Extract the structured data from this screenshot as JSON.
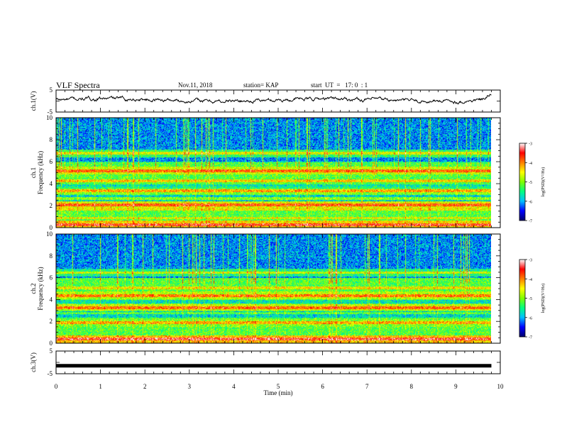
{
  "header": {
    "title": "VLF Spectra",
    "date": "Nov.11, 2018",
    "station": "station= KAP",
    "start": "start  UT  =   17: 0  : 1"
  },
  "panels": {
    "ch1_wave": {
      "ylabel": "ch.1(V)",
      "ticks": [
        "5",
        "-5"
      ]
    },
    "ch1_spec": {
      "ylabel_line1": "ch.1",
      "ylabel_line2": "Frequency (kHz)",
      "yticks": [
        "10",
        "8",
        "6",
        "4",
        "2",
        "0"
      ]
    },
    "ch2_spec": {
      "ylabel_line1": "ch.2",
      "ylabel_line2": "Frequency (kHz)",
      "yticks": [
        "10",
        "8",
        "6",
        "4",
        "2",
        "0"
      ]
    },
    "ch3_wave": {
      "ylabel": "ch.3(V)",
      "ticks": [
        "5",
        "-5"
      ]
    }
  },
  "colorbars": [
    {
      "ticks": [
        "-3",
        "-4",
        "-5",
        "-6",
        "-7"
      ],
      "label": "log(PSD)(V²/Hz)"
    },
    {
      "ticks": [
        "-3",
        "-4",
        "-5",
        "-6",
        "-7"
      ],
      "label": "log(PSD)(V²/Hz)"
    }
  ],
  "xaxis": {
    "label": "Time  (min)",
    "ticks": [
      "0",
      "1",
      "2",
      "3",
      "4",
      "5",
      "6",
      "7",
      "8",
      "9",
      "10"
    ]
  },
  "chart_data": {
    "type": "heatmap",
    "x_range_min": [
      0,
      10
    ],
    "data_end_min": 9.8,
    "ch1_voltage_range_V": [
      -5,
      5
    ],
    "ch3_voltage_range_V": [
      -5,
      5
    ],
    "ch3_constant_V": -1.5,
    "freq_range_kHz": [
      0,
      10
    ],
    "psd_log_range": [
      -7,
      -3
    ],
    "colormap": [
      "#00006a",
      "#0000ff",
      "#00bfff",
      "#00ff80",
      "#7fff00",
      "#ffff00",
      "#ff7f00",
      "#ff0000",
      "#ffffff"
    ],
    "ch1_bands_kHz": [
      {
        "f": 0.3,
        "level": -3.6
      },
      {
        "f": 0.9,
        "level": -4.6
      },
      {
        "f": 1.7,
        "level": -4.5
      },
      {
        "f": 2.1,
        "level": -3.8
      },
      {
        "f": 2.7,
        "level": -4.4
      },
      {
        "f": 3.4,
        "level": -4.2
      },
      {
        "f": 4.3,
        "level": -4.4
      },
      {
        "f": 5.2,
        "level": -3.9
      },
      {
        "f": 6.8,
        "level": -4.6
      }
    ],
    "ch2_bands_kHz": [
      {
        "f": 0.4,
        "level": -3.5
      },
      {
        "f": 1.9,
        "level": -4.2
      },
      {
        "f": 2.8,
        "level": -4.6
      },
      {
        "f": 3.3,
        "level": -3.9
      },
      {
        "f": 4.4,
        "level": -4.0
      },
      {
        "f": 5.1,
        "level": -4.5
      },
      {
        "f": 6.5,
        "level": -4.7
      }
    ]
  }
}
